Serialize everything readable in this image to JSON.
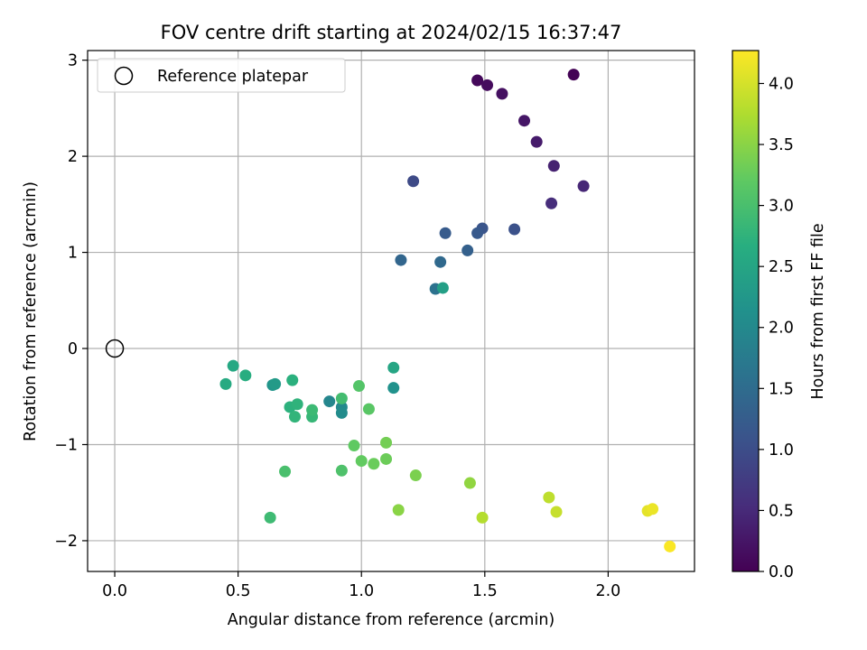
{
  "chart_data": {
    "type": "scatter",
    "title": "FOV centre drift starting at 2024/02/15 16:37:47",
    "xlabel": "Angular distance from reference (arcmin)",
    "ylabel": "Rotation from reference (arcmin)",
    "xlim": [
      -0.11,
      2.35
    ],
    "ylim": [
      -2.32,
      3.1
    ],
    "xticks": [
      0.0,
      0.5,
      1.0,
      1.5,
      2.0
    ],
    "xtick_labels": [
      "0.0",
      "0.5",
      "1.0",
      "1.5",
      "2.0"
    ],
    "yticks": [
      -2,
      -1,
      0,
      1,
      2,
      3
    ],
    "ytick_labels": [
      "−2",
      "−1",
      "0",
      "1",
      "2",
      "3"
    ],
    "grid": true,
    "legend": {
      "placement": "top-left",
      "entries": [
        "Reference platepar"
      ]
    },
    "reference_point": {
      "x": 0.0,
      "y": 0.0,
      "label": "Reference platepar"
    },
    "colorbar": {
      "label": "Hours from first FF file",
      "colormap": "viridis",
      "range": [
        0.0,
        4.27
      ],
      "ticks": [
        0.0,
        0.5,
        1.0,
        1.5,
        2.0,
        2.5,
        3.0,
        3.5,
        4.0
      ],
      "tick_labels": [
        "0.0",
        "0.5",
        "1.0",
        "1.5",
        "2.0",
        "2.5",
        "3.0",
        "3.5",
        "4.0"
      ]
    },
    "points": [
      {
        "x": 1.86,
        "y": 2.85,
        "t": 0.02
      },
      {
        "x": 1.47,
        "y": 2.79,
        "t": 0.08
      },
      {
        "x": 1.51,
        "y": 2.74,
        "t": 0.12
      },
      {
        "x": 1.57,
        "y": 2.65,
        "t": 0.18
      },
      {
        "x": 1.66,
        "y": 2.37,
        "t": 0.25
      },
      {
        "x": 1.71,
        "y": 2.15,
        "t": 0.32
      },
      {
        "x": 1.78,
        "y": 1.9,
        "t": 0.4
      },
      {
        "x": 1.9,
        "y": 1.69,
        "t": 0.46
      },
      {
        "x": 1.77,
        "y": 1.51,
        "t": 0.55
      },
      {
        "x": 1.21,
        "y": 1.74,
        "t": 0.95
      },
      {
        "x": 1.62,
        "y": 1.24,
        "t": 1.05
      },
      {
        "x": 1.49,
        "y": 1.25,
        "t": 1.12
      },
      {
        "x": 1.47,
        "y": 1.2,
        "t": 1.18
      },
      {
        "x": 1.34,
        "y": 1.2,
        "t": 1.22
      },
      {
        "x": 1.43,
        "y": 1.02,
        "t": 1.3
      },
      {
        "x": 1.16,
        "y": 0.92,
        "t": 1.4
      },
      {
        "x": 1.32,
        "y": 0.9,
        "t": 1.45
      },
      {
        "x": 1.3,
        "y": 0.62,
        "t": 1.6
      },
      {
        "x": 1.33,
        "y": 0.63,
        "t": 2.4
      },
      {
        "x": 0.87,
        "y": -0.55,
        "t": 1.95
      },
      {
        "x": 0.92,
        "y": -0.61,
        "t": 2.0
      },
      {
        "x": 0.92,
        "y": -0.67,
        "t": 2.05
      },
      {
        "x": 0.64,
        "y": -0.38,
        "t": 2.2
      },
      {
        "x": 0.65,
        "y": -0.37,
        "t": 2.3
      },
      {
        "x": 1.13,
        "y": -0.41,
        "t": 2.15
      },
      {
        "x": 1.13,
        "y": -0.2,
        "t": 2.5
      },
      {
        "x": 0.48,
        "y": -0.18,
        "t": 2.55
      },
      {
        "x": 0.45,
        "y": -0.37,
        "t": 2.6
      },
      {
        "x": 0.53,
        "y": -0.28,
        "t": 2.65
      },
      {
        "x": 0.72,
        "y": -0.33,
        "t": 2.7
      },
      {
        "x": 0.71,
        "y": -0.61,
        "t": 2.72
      },
      {
        "x": 0.74,
        "y": -0.58,
        "t": 2.75
      },
      {
        "x": 0.73,
        "y": -0.71,
        "t": 2.78
      },
      {
        "x": 0.8,
        "y": -0.71,
        "t": 2.82
      },
      {
        "x": 0.8,
        "y": -0.64,
        "t": 2.88
      },
      {
        "x": 0.92,
        "y": -0.52,
        "t": 2.95
      },
      {
        "x": 0.99,
        "y": -0.39,
        "t": 3.1
      },
      {
        "x": 1.03,
        "y": -0.63,
        "t": 3.15
      },
      {
        "x": 0.63,
        "y": -1.76,
        "t": 2.9
      },
      {
        "x": 0.69,
        "y": -1.28,
        "t": 3.0
      },
      {
        "x": 0.92,
        "y": -1.27,
        "t": 3.05
      },
      {
        "x": 0.97,
        "y": -1.01,
        "t": 3.2
      },
      {
        "x": 1.0,
        "y": -1.17,
        "t": 3.22
      },
      {
        "x": 1.05,
        "y": -1.2,
        "t": 3.28
      },
      {
        "x": 1.1,
        "y": -1.15,
        "t": 3.3
      },
      {
        "x": 1.1,
        "y": -0.98,
        "t": 3.35
      },
      {
        "x": 1.22,
        "y": -1.32,
        "t": 3.4
      },
      {
        "x": 1.15,
        "y": -1.68,
        "t": 3.5
      },
      {
        "x": 1.44,
        "y": -1.4,
        "t": 3.55
      },
      {
        "x": 1.49,
        "y": -1.76,
        "t": 3.78
      },
      {
        "x": 1.76,
        "y": -1.55,
        "t": 3.85
      },
      {
        "x": 1.79,
        "y": -1.7,
        "t": 3.9
      },
      {
        "x": 2.16,
        "y": -1.69,
        "t": 4.1
      },
      {
        "x": 2.18,
        "y": -1.67,
        "t": 4.15
      },
      {
        "x": 2.25,
        "y": -2.06,
        "t": 4.25
      }
    ]
  }
}
